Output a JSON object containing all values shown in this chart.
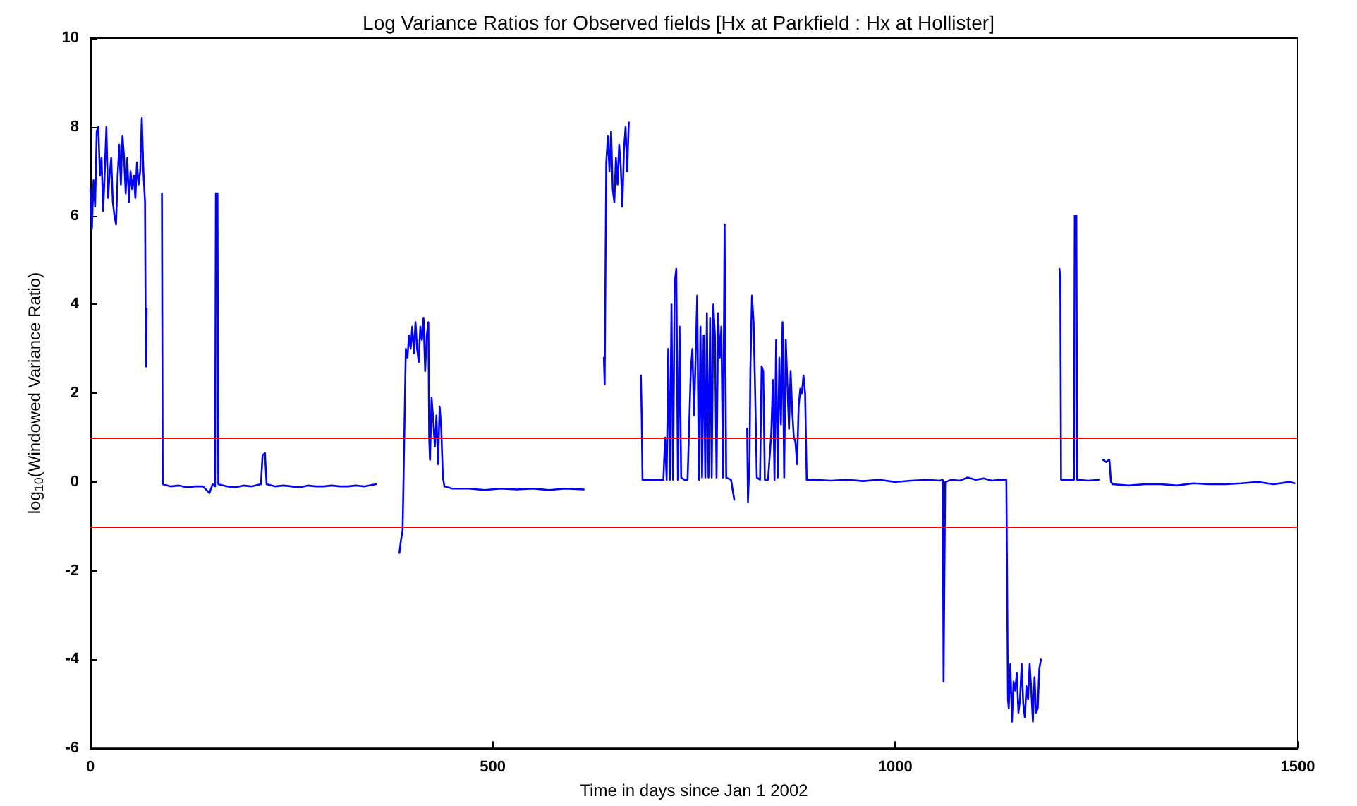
{
  "chart_data": {
    "type": "line",
    "title": "Log Variance Ratios for Observed fields [Hx at Parkfield : Hx at Hollister]",
    "xlabel": "Time in days since Jan 1 2002",
    "ylabel": "log$_{10}$(Windowed Variance Ratio)",
    "xlim": [
      0,
      1500
    ],
    "xticks": [
      0,
      500,
      1000,
      1500
    ],
    "ylim": [
      -6,
      10
    ],
    "yticks": [
      -6,
      -4,
      -2,
      0,
      2,
      4,
      6,
      8,
      10
    ],
    "grid": false,
    "marker": "none",
    "line_style": "solid",
    "ref_lines": [
      {
        "axis": "y",
        "value": 1,
        "color": "#ff0000"
      },
      {
        "axis": "y",
        "value": -1,
        "color": "#ff0000"
      }
    ],
    "series": [
      {
        "color": "#0000ff",
        "x": [
          0,
          2,
          4,
          6,
          8,
          10,
          12,
          14,
          16,
          18,
          20,
          22,
          24,
          26,
          28,
          30,
          32,
          34,
          36,
          38,
          40,
          42,
          44,
          46,
          48,
          50,
          52,
          54,
          56,
          58,
          60,
          62,
          64,
          66,
          68,
          69,
          70,
          71,
          89,
          90,
          100,
          110,
          120,
          130,
          140,
          148,
          152,
          155,
          156,
          158,
          159,
          170,
          180,
          190,
          200,
          212,
          214,
          217,
          219,
          230,
          240,
          250,
          260,
          270,
          280,
          290,
          300,
          310,
          320,
          330,
          340,
          355,
          365,
          384,
          386,
          388,
          392,
          394,
          396,
          398,
          400,
          402,
          404,
          406,
          408,
          410,
          412,
          414,
          416,
          418,
          420,
          421,
          422,
          424,
          426,
          428,
          430,
          432,
          434,
          436,
          438,
          440,
          450,
          470,
          490,
          510,
          530,
          550,
          570,
          590,
          613,
          625,
          638,
          639,
          641,
          643,
          645,
          647,
          649,
          651,
          653,
          655,
          657,
          659,
          661,
          663,
          665,
          667,
          669,
          678,
          684,
          685,
          686,
          700,
          712,
          714,
          716,
          718,
          720,
          722,
          724,
          726,
          728,
          730,
          732,
          734,
          738,
          742,
          746,
          748,
          750,
          752,
          754,
          756,
          758,
          760,
          762,
          764,
          766,
          768,
          770,
          772,
          774,
          776,
          778,
          780,
          782,
          784,
          786,
          788,
          790,
          796,
          800,
          805,
          816,
          817,
          819,
          820,
          822,
          824,
          826,
          828,
          832,
          834,
          836,
          838,
          842,
          846,
          848,
          850,
          852,
          854,
          856,
          858,
          860,
          862,
          864,
          866,
          868,
          870,
          872,
          874,
          876,
          878,
          880,
          882,
          884,
          886,
          888,
          890,
          900,
          920,
          940,
          960,
          980,
          1000,
          1020,
          1040,
          1055,
          1059,
          1060,
          1062,
          1070,
          1080,
          1090,
          1100,
          1110,
          1120,
          1130,
          1138,
          1140,
          1141,
          1143,
          1145,
          1147,
          1149,
          1151,
          1153,
          1155,
          1157,
          1159,
          1161,
          1163,
          1165,
          1167,
          1169,
          1171,
          1173,
          1175,
          1177,
          1179,
          1181,
          1190,
          1204,
          1205,
          1206,
          1215,
          1222,
          1223,
          1225,
          1226,
          1240,
          1253,
          1256,
          1258,
          1262,
          1266,
          1268,
          1270,
          1290,
          1310,
          1330,
          1350,
          1370,
          1390,
          1410,
          1430,
          1450,
          1470,
          1490,
          1496
        ],
        "values": [
          6.6,
          5.7,
          6.8,
          6.2,
          7.9,
          8.0,
          6.9,
          7.3,
          6.1,
          7.0,
          8.0,
          6.4,
          6.9,
          7.3,
          6.3,
          6.0,
          5.8,
          6.9,
          7.6,
          6.7,
          7.8,
          7.3,
          6.5,
          7.3,
          6.3,
          7.0,
          6.6,
          6.9,
          6.4,
          7.2,
          6.7,
          7.0,
          8.2,
          7.0,
          6.3,
          2.6,
          3.9,
          null,
          6.5,
          -0.05,
          -0.1,
          -0.08,
          -0.12,
          -0.1,
          -0.1,
          -0.25,
          -0.05,
          -0.1,
          6.5,
          6.5,
          -0.05,
          -0.1,
          -0.12,
          -0.08,
          -0.1,
          -0.05,
          0.6,
          0.65,
          -0.05,
          -0.1,
          -0.08,
          -0.1,
          -0.12,
          -0.08,
          -0.1,
          -0.1,
          -0.08,
          -0.1,
          -0.1,
          -0.08,
          -0.1,
          -0.05,
          null,
          -1.6,
          -1.3,
          -1.1,
          3.0,
          2.8,
          3.3,
          3.0,
          3.5,
          2.9,
          3.6,
          3.0,
          2.7,
          3.5,
          3.2,
          3.7,
          2.5,
          3.3,
          3.6,
          1.0,
          0.5,
          1.9,
          1.4,
          0.8,
          1.5,
          0.4,
          1.7,
          1.2,
          0.1,
          -0.1,
          -0.15,
          -0.15,
          -0.18,
          -0.15,
          -0.17,
          -0.15,
          -0.18,
          -0.15,
          -0.17,
          null,
          2.8,
          2.2,
          7.2,
          7.8,
          7.0,
          7.9,
          6.6,
          6.3,
          7.3,
          6.7,
          7.6,
          7.1,
          6.2,
          7.5,
          8.0,
          7.0,
          8.1,
          null,
          2.4,
          1.5,
          0.05,
          0.05,
          0.05,
          1.0,
          0.05,
          3.0,
          0.05,
          4.0,
          0.05,
          4.5,
          4.8,
          0.05,
          3.5,
          0.1,
          0.05,
          0.05,
          2.5,
          3.0,
          1.5,
          2.8,
          4.2,
          0.05,
          3.5,
          0.1,
          3.3,
          0.1,
          3.8,
          0.1,
          3.7,
          0.1,
          4.0,
          3.3,
          0.1,
          3.8,
          2.8,
          3.5,
          0.1,
          5.8,
          0.1,
          0.05,
          -0.4,
          null,
          1.2,
          -0.45,
          0.5,
          2.5,
          4.2,
          3.6,
          2.0,
          0.1,
          0.05,
          2.6,
          2.5,
          0.05,
          0.05,
          1.1,
          2.3,
          0.05,
          3.2,
          0.1,
          2.8,
          1.3,
          3.6,
          0.1,
          3.2,
          2.2,
          1.2,
          2.5,
          1.6,
          1.0,
          0.9,
          0.4,
          1.7,
          2.1,
          2.0,
          2.4,
          2.0,
          0.05,
          0.05,
          0.03,
          0.05,
          0.02,
          0.05,
          0.0,
          0.03,
          0.05,
          0.03,
          0.05,
          -4.5,
          0.0,
          0.05,
          0.03,
          0.1,
          0.05,
          0.08,
          0.03,
          0.05,
          0.05,
          -4.9,
          -5.1,
          -4.1,
          -5.4,
          -4.5,
          -4.7,
          -4.3,
          -5.2,
          -4.9,
          -4.1,
          -5.0,
          -5.3,
          -4.6,
          -4.9,
          -4.1,
          -4.7,
          -5.4,
          -4.4,
          -5.2,
          -5.1,
          -4.2,
          -4.0,
          null,
          4.8,
          4.6,
          0.05,
          0.05,
          0.05,
          6.0,
          6.0,
          0.05,
          0.03,
          0.05,
          null,
          0.5,
          0.45,
          0.5,
          0.0,
          -0.05,
          -0.08,
          -0.05,
          -0.05,
          -0.08,
          -0.03,
          -0.05,
          -0.05,
          -0.03,
          0.0,
          -0.05,
          0.0,
          -0.03
        ]
      }
    ]
  }
}
